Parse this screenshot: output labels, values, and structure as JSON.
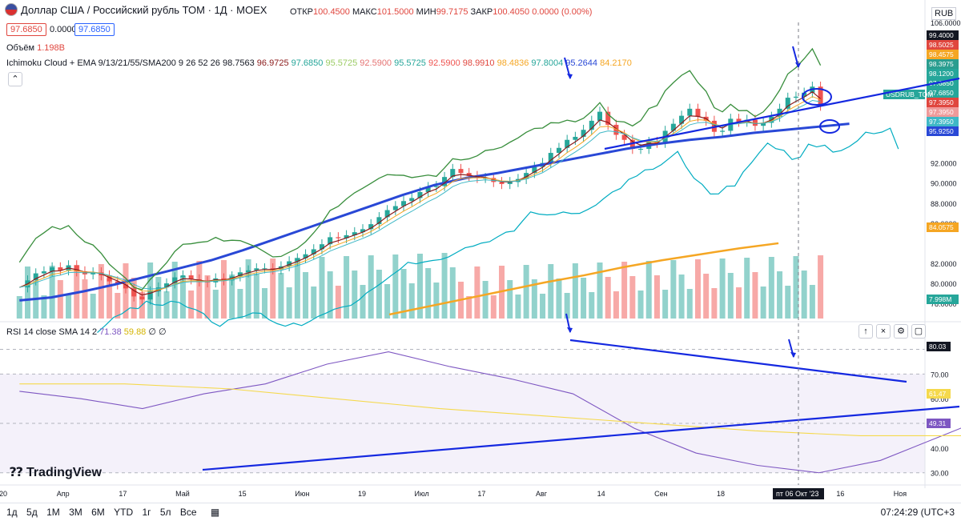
{
  "header": {
    "title": "Доллар США / Российский рубль ТОМ · 1Д · MOEX",
    "ohlc": [
      {
        "k": "ОТКР",
        "v": "100.4500"
      },
      {
        "k": "МАКС",
        "v": "101.5000"
      },
      {
        "k": "МИН",
        "v": "99.7175"
      },
      {
        "k": "ЗАКР",
        "v": "100.4050"
      },
      {
        "k": "",
        "v": "0.0000 (0.00%)"
      }
    ],
    "bid": "97.6850",
    "spread": "0.0000",
    "ask": "97.6850",
    "volume_label": "Объём",
    "volume_value": "1.198B",
    "ichimoku_label": "Ichimoku Cloud + EMA 9/13/21/55/SMA200 9 26 52 26",
    "ichimoku_values": [
      "98.7563",
      "96.9725",
      "97.6850",
      "95.5725",
      "92.5900",
      "95.5725",
      "92.5900",
      "98.9910",
      "98.4836",
      "97.8004",
      "95.2644",
      "84.2170"
    ],
    "currency": "RUB",
    "collapse_icon": "chevron-up-icon"
  },
  "rsi_header": {
    "label": "RSI 14 close SMA 14 2",
    "values": [
      "71.38",
      "59.88",
      "∅",
      "∅"
    ]
  },
  "timeframes": [
    "1д",
    "5д",
    "1М",
    "3М",
    "6М",
    "YTD",
    "1г",
    "5л",
    "Все"
  ],
  "footer": {
    "time": "07:24:29 (UTC+3",
    "logo": "TradingView"
  },
  "price_labels": [
    {
      "v": "99.4000",
      "c": "#131722"
    },
    {
      "v": "98.5025",
      "c": "#e0463e"
    },
    {
      "v": "98.4575",
      "c": "#f5a623"
    },
    {
      "v": "98.3975",
      "c": "#2a9d8f"
    },
    {
      "v": "98.1200",
      "c": "#26a69a"
    },
    {
      "v": "97.6850",
      "c": "#26a69a"
    },
    {
      "v": "97.6850",
      "c": "#26a69a"
    },
    {
      "v": "97.3950",
      "c": "#e0463e"
    },
    {
      "v": "97.3950",
      "c": "#ef9a9a"
    },
    {
      "v": "97.3950",
      "c": "#3fb8c6"
    },
    {
      "v": "95.9250",
      "c": "#2948d6"
    },
    {
      "v": "84.0575",
      "c": "#f5a623"
    },
    {
      "v": "7.998M",
      "c": "#26a69a"
    }
  ],
  "symbol_tag": "USDRUB_TOM",
  "rsi_labels": [
    {
      "v": "80.03",
      "c": "#131722"
    },
    {
      "v": "61.47",
      "c": "#f5d94c"
    },
    {
      "v": "49.31",
      "c": "#7e57c2"
    }
  ],
  "crosshair_date": "пт 06 Окт '23",
  "chart_data": {
    "type": "line",
    "price_axis": {
      "ticks": [
        106,
        92,
        90,
        88,
        86,
        82,
        80,
        78
      ],
      "range": [
        76.5,
        106
      ]
    },
    "rsi_axis": {
      "ticks": [
        70,
        60,
        50,
        40,
        30
      ],
      "range": [
        27,
        86
      ]
    },
    "time_axis": [
      "20",
      "Апр",
      "17",
      "Май",
      "15",
      "Июн",
      "19",
      "Июл",
      "17",
      "Авг",
      "14",
      "Сен",
      "18",
      "О",
      "16",
      "Ноя"
    ],
    "x_index_range": [
      0,
      215
    ],
    "series": [
      {
        "name": "Close",
        "values": [
          79.6,
          80.3,
          81.0,
          81.2,
          81.6,
          81.3,
          81.8,
          81.2,
          80.9,
          81.1,
          80.8,
          80.2,
          79.9,
          79.5,
          78.7,
          78.4,
          79.2,
          79.6,
          80.0,
          80.6,
          80.8,
          80.4,
          80.2,
          80.1,
          80.5,
          80.3,
          80.7,
          81.1,
          81.3,
          81.5,
          81.5,
          81.4,
          81.7,
          82.2,
          82.5,
          82.9,
          83.4,
          83.9,
          84.6,
          84.5,
          84.8,
          85.1,
          85.4,
          85.9,
          86.6,
          87.3,
          87.7,
          88.2,
          88.5,
          89.1,
          89.6,
          89.7,
          90.6,
          91.4,
          91.0,
          90.7,
          90.5,
          90.5,
          90.1,
          89.9,
          90.1,
          90.4,
          91.0,
          91.6,
          92.0,
          93.0,
          93.5,
          94.3,
          94.6,
          95.3,
          96.2,
          97.1,
          95.8,
          94.8,
          94.3,
          93.4,
          93.4,
          94.1,
          94.0,
          95.2,
          95.9,
          96.7,
          97.4,
          96.6,
          96.2,
          95.1,
          95.2,
          96.4,
          96.1,
          96.3,
          95.7,
          96.0,
          96.6,
          97.4,
          98.5,
          98.6,
          99.0,
          99.6,
          97.7
        ]
      },
      {
        "name": "EMA 55",
        "values": [
          78.3,
          78.6,
          79.2,
          79.9,
          80.7,
          81.5,
          82.3,
          83.3,
          84.4,
          85.5,
          86.6,
          87.7,
          88.8,
          89.8,
          90.5,
          91.0,
          91.6,
          92.2,
          92.8,
          93.4,
          93.9,
          94.3,
          94.6,
          95.0,
          95.3,
          95.6,
          95.9
        ]
      },
      {
        "name": "SMA 200",
        "values": [
          76.9,
          77.7,
          78.5,
          79.3,
          80.1,
          80.8,
          81.6,
          82.3,
          82.9,
          83.5,
          84.0
        ]
      },
      {
        "name": "RSI",
        "values": [
          63,
          60,
          56,
          62,
          66,
          74,
          79,
          73,
          68,
          62,
          48,
          38,
          33,
          30,
          35,
          45,
          55,
          52,
          48,
          57,
          62,
          66,
          64,
          59,
          56,
          62,
          69,
          73,
          66,
          60,
          64,
          68,
          74,
          82,
          77,
          68,
          62,
          66,
          59,
          60,
          66,
          72,
          80,
          76,
          61,
          52,
          51,
          52,
          48,
          58,
          51,
          49,
          48,
          52,
          56,
          54,
          51,
          47,
          48,
          57,
          53,
          64,
          66,
          70,
          73,
          72,
          51,
          49,
          47,
          49
        ]
      },
      {
        "name": "RSI SMA",
        "values": [
          66,
          66,
          64,
          60,
          56,
          53,
          50,
          47,
          45,
          45,
          47,
          50,
          53,
          56,
          58,
          59,
          60,
          62,
          63,
          64,
          65,
          65,
          66,
          67,
          68,
          67,
          65,
          62,
          59,
          56,
          54,
          55,
          57,
          59,
          58,
          57,
          58,
          59,
          61
        ]
      }
    ]
  }
}
